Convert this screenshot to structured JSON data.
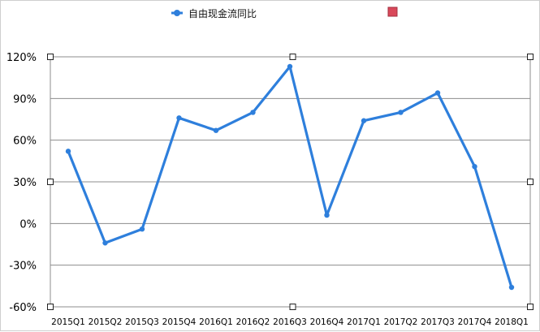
{
  "chart_data": {
    "type": "line",
    "title": "",
    "xlabel": "",
    "ylabel": "",
    "categories": [
      "2015Q1",
      "2015Q2",
      "2015Q3",
      "2015Q4",
      "2016Q1",
      "2016Q2",
      "2016Q3",
      "2016Q4",
      "2017Q1",
      "2017Q2",
      "2017Q3",
      "2017Q4",
      "2018Q1"
    ],
    "series": [
      {
        "name": "自由现金流同比",
        "color": "#2e7fdc",
        "values": [
          52,
          -14,
          -4,
          76,
          67,
          80,
          113,
          6,
          74,
          80,
          94,
          41,
          -46
        ]
      }
    ],
    "ylim": [
      -60,
      120
    ],
    "yticks": [
      -60,
      -30,
      0,
      30,
      60,
      90,
      120
    ],
    "ytick_labels": [
      "-60%",
      "-30%",
      "0%",
      "30%",
      "60%",
      "90%",
      "120%"
    ],
    "y_unit": "%",
    "grid": true,
    "legend_position": "top-center",
    "gridline_color": "#8c8c8c",
    "extra_legend_marker_color": "#d9485a"
  }
}
